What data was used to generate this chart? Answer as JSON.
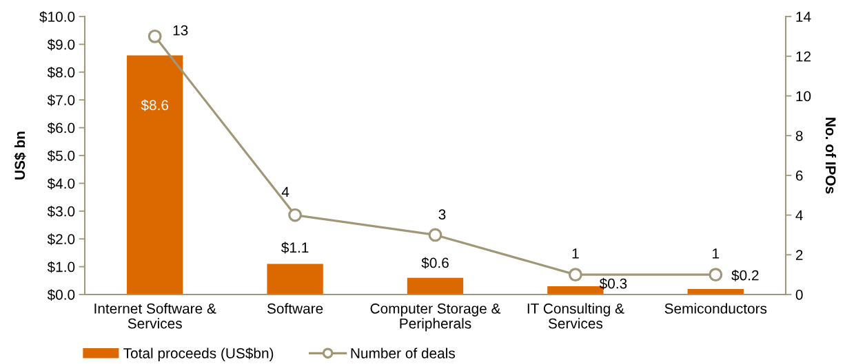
{
  "chart_data": {
    "type": "bar",
    "categories": [
      "Internet Software & Services",
      "Software",
      "Computer Storage & Peripherals",
      "IT Consulting & Services",
      "Semiconductors"
    ],
    "ylabel": "US$ bn",
    "y2label": "No. of IPOs",
    "ylim": [
      0,
      10
    ],
    "yticks": [
      {
        "value": 0,
        "label": "$0.0"
      },
      {
        "value": 1,
        "label": "$1.0"
      },
      {
        "value": 2,
        "label": "$2.0"
      },
      {
        "value": 3,
        "label": "$3.0"
      },
      {
        "value": 4,
        "label": "$4.0"
      },
      {
        "value": 5,
        "label": "$5.0"
      },
      {
        "value": 6,
        "label": "$6.0"
      },
      {
        "value": 7,
        "label": "$7.0"
      },
      {
        "value": 8,
        "label": "$8.0"
      },
      {
        "value": 9,
        "label": "$9.0"
      },
      {
        "value": 10,
        "label": "$10.0"
      }
    ],
    "y2lim": [
      0,
      14
    ],
    "y2ticks": [
      0,
      2,
      4,
      6,
      8,
      10,
      12,
      14
    ],
    "series": [
      {
        "name": "Total proceeds (US$bn)",
        "color": "#dc6900",
        "values": [
          8.6,
          1.1,
          0.6,
          0.3,
          0.2
        ],
        "value_labels": [
          "$8.6",
          "$1.1",
          "$0.6",
          "$0.3",
          "$0.2"
        ]
      },
      {
        "name": "Number of deals",
        "type": "line",
        "axis": "y2",
        "color": "#a09778",
        "marker": "circle",
        "values": [
          13,
          4,
          3,
          1,
          1
        ],
        "value_labels": [
          "13",
          "4",
          "3",
          "1",
          "1"
        ]
      }
    ],
    "legend": "bottom"
  }
}
